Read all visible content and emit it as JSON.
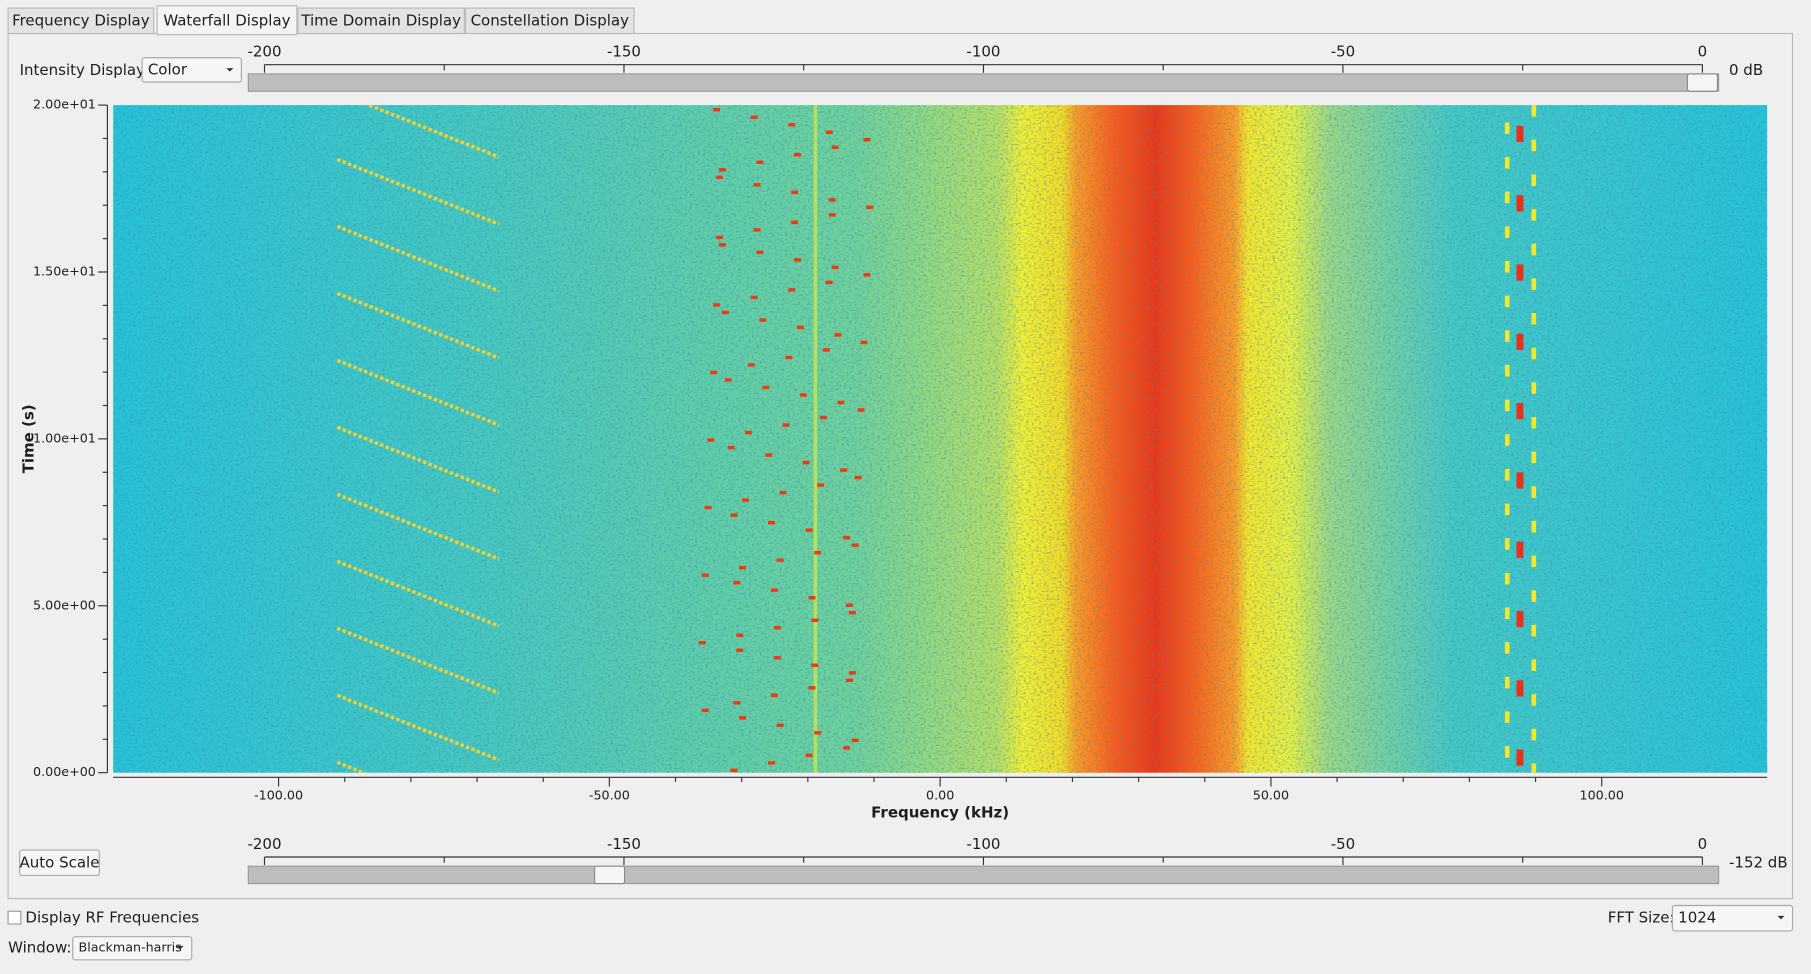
{
  "tabs": [
    "Frequency Display",
    "Waterfall Display",
    "Time Domain Display",
    "Constellation Display"
  ],
  "intensity_label": "Intensity Display:",
  "intensity_mode": "Color",
  "max_slider": {
    "lim": [
      -200,
      0
    ],
    "ticks": [
      -200,
      -150,
      -100,
      -50,
      0
    ],
    "value": 0,
    "label": "0 dB"
  },
  "min_slider": {
    "lim": [
      -200,
      0
    ],
    "ticks": [
      -200,
      -150,
      -100,
      -50,
      0
    ],
    "value": -152,
    "label": "-152 dB"
  },
  "auto_scale": "Auto Scale",
  "chart_data": {
    "type": "waterfall",
    "xlabel": "Frequency (kHz)",
    "ylabel": "Time (s)",
    "xlim": [
      -125,
      125
    ],
    "xticks": [
      {
        "value": -100,
        "label": "-100.00"
      },
      {
        "value": -50,
        "label": "-50.00"
      },
      {
        "value": 0,
        "label": "0.00"
      },
      {
        "value": 50,
        "label": "50.00"
      },
      {
        "value": 100,
        "label": "100.00"
      }
    ],
    "ylim": [
      0,
      20
    ],
    "yticks": [
      {
        "value": 0,
        "label": "0.00e+00"
      },
      {
        "value": 5,
        "label": "5.00e+00"
      },
      {
        "value": 10,
        "label": "1.00e+01"
      },
      {
        "value": 15,
        "label": "1.50e+01"
      },
      {
        "value": 20,
        "label": "2.00e+01"
      }
    ]
  },
  "rf_checkbox": "Display RF Frequencies",
  "fft_label": "FFT Size:",
  "fft_size": "1024",
  "window_label": "Window:",
  "window": "Blackman-harris"
}
